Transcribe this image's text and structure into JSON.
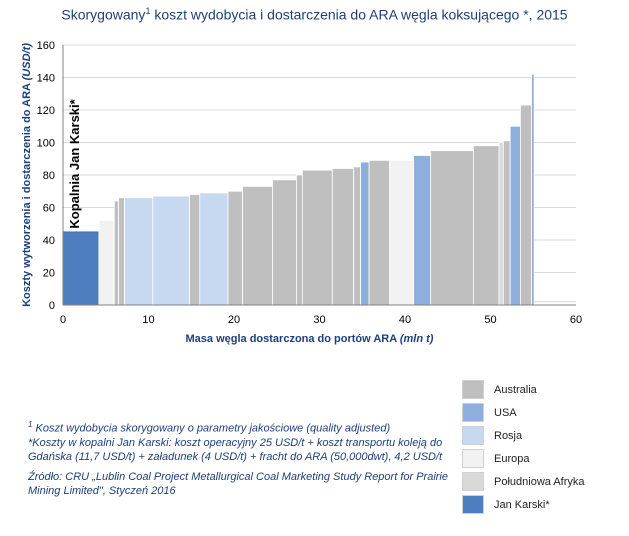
{
  "title_main": "Skorygowany",
  "title_sup": "1",
  "title_rest": " koszt wydobycia i dostarczenia do ARA węgla koksującego *, 2015",
  "colors": {
    "Australia": "#BFBFBF",
    "USA": "#8EAEDB",
    "Rosja": "#C6D9F1",
    "Europa": "#F2F2F2",
    "Południowa Afryka": "#D9D9D9",
    "Jan Karski": "#4F7EC0"
  },
  "legend": [
    {
      "label": "Australia",
      "color": "#BFBFBF"
    },
    {
      "label": "USA",
      "color": "#8EAEDB"
    },
    {
      "label": "Rosja",
      "color": "#C6D9F1"
    },
    {
      "label": "Europa",
      "color": "#F2F2F2"
    },
    {
      "label": "Południowa Afryka",
      "color": "#D9D9D9"
    },
    {
      "label": "Jan Karski*",
      "color": "#4F7EC0"
    }
  ],
  "notes": {
    "n1_sup": "1",
    "n1": " Koszt wydobycia skorygowany o parametry jakościowe (quality adjusted)",
    "n2": "*Koszty w kopalni Jan Karski: koszt operacyjny  25 USD/t + koszt transportu koleją do Gdańska (11,7 USD/t) + załadunek (4 USD/t) + fracht do ARA (50,000dwt), 4,2 USD/t",
    "source": "Źródło: CRU „Lublin Coal Project Metallurgical Coal Marketing Study Report for Prairie Mining Limited\",  Styczeń 2016"
  },
  "chart_data": {
    "type": "bar",
    "subtype": "cost-curve",
    "xlabel": "Masa węgla dostarczona do portów ARA",
    "xlabel_unit": "(mln t)",
    "ylabel": "Koszty wytworzenia i dostarczenia do ARA",
    "ylabel_unit": "(USD/t)",
    "xlim": [
      0,
      60
    ],
    "ylim": [
      0,
      160
    ],
    "xticks": [
      0,
      10,
      20,
      30,
      40,
      50,
      60
    ],
    "yticks": [
      0,
      20,
      40,
      60,
      80,
      100,
      120,
      140,
      160
    ],
    "grid": "horizontal",
    "annotation": "Kopalnia Jan Karski*",
    "bars": [
      {
        "x0": 0.0,
        "x1": 4.2,
        "value": 45,
        "country": "Jan Karski"
      },
      {
        "x0": 4.2,
        "x1": 6.0,
        "value": 52,
        "country": "Europa"
      },
      {
        "x0": 6.0,
        "x1": 6.5,
        "value": 64,
        "country": "Australia"
      },
      {
        "x0": 6.5,
        "x1": 7.2,
        "value": 66,
        "country": "Australia"
      },
      {
        "x0": 7.2,
        "x1": 10.5,
        "value": 66,
        "country": "Rosja"
      },
      {
        "x0": 10.5,
        "x1": 14.8,
        "value": 67,
        "country": "Rosja"
      },
      {
        "x0": 14.8,
        "x1": 16.0,
        "value": 68,
        "country": "Australia"
      },
      {
        "x0": 16.0,
        "x1": 19.3,
        "value": 69,
        "country": "Rosja"
      },
      {
        "x0": 19.3,
        "x1": 21.0,
        "value": 70,
        "country": "Australia"
      },
      {
        "x0": 21.0,
        "x1": 24.5,
        "value": 73,
        "country": "Australia"
      },
      {
        "x0": 24.5,
        "x1": 27.3,
        "value": 77,
        "country": "Australia"
      },
      {
        "x0": 27.3,
        "x1": 28.0,
        "value": 80,
        "country": "Australia"
      },
      {
        "x0": 28.0,
        "x1": 31.5,
        "value": 83,
        "country": "Australia"
      },
      {
        "x0": 31.5,
        "x1": 34.0,
        "value": 84,
        "country": "Australia"
      },
      {
        "x0": 34.0,
        "x1": 34.8,
        "value": 85,
        "country": "Australia"
      },
      {
        "x0": 34.8,
        "x1": 35.8,
        "value": 88,
        "country": "USA"
      },
      {
        "x0": 35.8,
        "x1": 38.2,
        "value": 89,
        "country": "Australia"
      },
      {
        "x0": 38.2,
        "x1": 41.0,
        "value": 89,
        "country": "Europa"
      },
      {
        "x0": 41.0,
        "x1": 43.0,
        "value": 92,
        "country": "USA"
      },
      {
        "x0": 43.0,
        "x1": 48.0,
        "value": 95,
        "country": "Australia"
      },
      {
        "x0": 48.0,
        "x1": 51.0,
        "value": 98,
        "country": "Australia"
      },
      {
        "x0": 51.0,
        "x1": 51.5,
        "value": 100,
        "country": "Południowa Afryka"
      },
      {
        "x0": 51.5,
        "x1": 52.3,
        "value": 101,
        "country": "Australia"
      },
      {
        "x0": 52.3,
        "x1": 53.5,
        "value": 110,
        "country": "USA"
      },
      {
        "x0": 53.5,
        "x1": 54.8,
        "value": 123,
        "country": "Australia"
      },
      {
        "x0": 54.8,
        "x1": 55.1,
        "value": 142,
        "country": "USA"
      }
    ]
  }
}
